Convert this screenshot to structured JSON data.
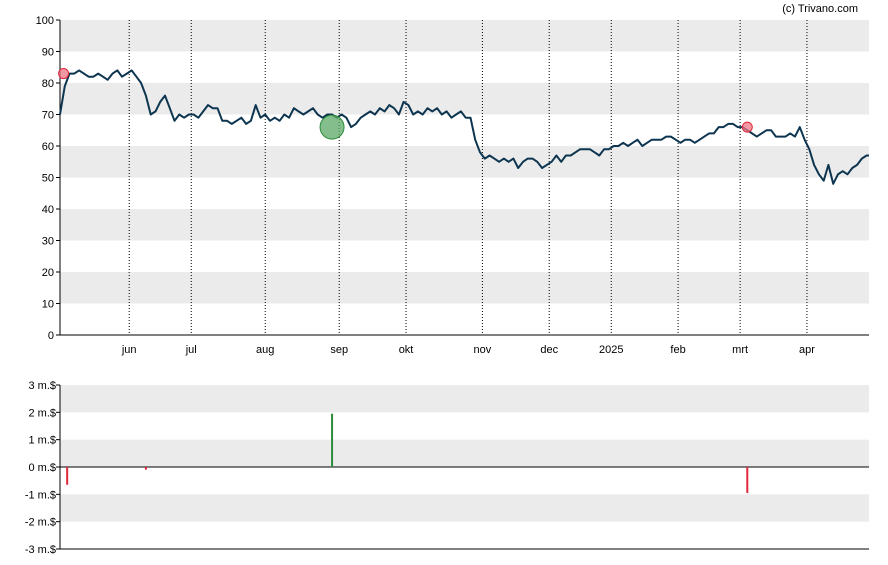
{
  "credit": "(c) Trivano.com",
  "colors": {
    "line": "#0d3550",
    "band": "#ebebeb",
    "buy": "#2e8b3a",
    "sell": "#e0283a",
    "buy_marker": "#5aa865",
    "sell_marker": "#f07585"
  },
  "chart_data": [
    {
      "type": "line",
      "title": "",
      "xlabel": "",
      "ylabel": "",
      "ylim": [
        0,
        100
      ],
      "yticks": [
        "0",
        "10",
        "20",
        "30",
        "40",
        "50",
        "60",
        "70",
        "80",
        "90",
        "100"
      ],
      "xlim": [
        0,
        339
      ],
      "month_labels": [
        "jun",
        "jul",
        "aug",
        "sep",
        "okt",
        "nov",
        "dec",
        "2025",
        "feb",
        "mrt",
        "apr"
      ],
      "month_positions": [
        29,
        55,
        86,
        117,
        145,
        177,
        205,
        231,
        259,
        285,
        313
      ],
      "grid": "vertical dotted lines at month starts, alternating horizontal bands",
      "series": [
        {
          "x": [
            0,
            2,
            4,
            6,
            8,
            10,
            12,
            14,
            16,
            18,
            20,
            22,
            24,
            26,
            28,
            30,
            32,
            34,
            36,
            38,
            40,
            42,
            44,
            46,
            48,
            50,
            52,
            54,
            56,
            58,
            60,
            62,
            64,
            66,
            68,
            70,
            72,
            74,
            76,
            78,
            80,
            82,
            84,
            86,
            88,
            90,
            92,
            94,
            96,
            98,
            100,
            102,
            104,
            106,
            108,
            110,
            112,
            114,
            116,
            118,
            120,
            122,
            124,
            126,
            128,
            130,
            132,
            134,
            136,
            138,
            140,
            142,
            144,
            146,
            148,
            150,
            152,
            154,
            156,
            158,
            160,
            162,
            164,
            166,
            168,
            170,
            172,
            174,
            176,
            178,
            180,
            182,
            184,
            186,
            188,
            190,
            192,
            194,
            196,
            198,
            200,
            202,
            204,
            206,
            208,
            210,
            212,
            214,
            216,
            218,
            220,
            222,
            224,
            226,
            228,
            230,
            232,
            234,
            236,
            238,
            240,
            242,
            244,
            246,
            248,
            250,
            252,
            254,
            256,
            258,
            260,
            262,
            264,
            266,
            268,
            270,
            272,
            274,
            276,
            278,
            280,
            282,
            284,
            286,
            288,
            290,
            292,
            294,
            296,
            298,
            300,
            302,
            304,
            306,
            308,
            310,
            312,
            314,
            316,
            318,
            320,
            322,
            324,
            326,
            328,
            330,
            332,
            334,
            336,
            338,
            339
          ],
          "values": [
            70,
            79,
            83,
            83,
            84,
            83,
            82,
            82,
            83,
            82,
            81,
            83,
            84,
            82,
            83,
            84,
            82,
            80,
            76,
            70,
            71,
            74,
            76,
            72,
            68,
            70,
            69,
            70,
            70,
            69,
            71,
            73,
            72,
            72,
            68,
            68,
            67,
            68,
            69,
            67,
            68,
            73,
            69,
            70,
            68,
            69,
            68,
            70,
            69,
            72,
            71,
            70,
            71,
            72,
            70,
            69,
            70,
            70,
            69,
            70,
            69,
            66,
            67,
            69,
            70,
            71,
            70,
            72,
            71,
            73,
            72,
            70,
            74,
            73,
            70,
            71,
            70,
            72,
            71,
            72,
            70,
            71,
            69,
            70,
            71,
            69,
            69,
            62,
            58,
            56,
            57,
            56,
            55,
            56,
            55,
            56,
            53,
            55,
            56,
            56,
            55,
            53,
            54,
            55,
            57,
            55,
            57,
            57,
            58,
            59,
            59,
            59,
            58,
            57,
            59,
            59,
            60,
            60,
            61,
            60,
            61,
            62,
            60,
            61,
            62,
            62,
            62,
            63,
            63,
            62,
            61,
            62,
            62,
            61,
            62,
            63,
            64,
            64,
            66,
            66,
            67,
            67,
            66,
            66,
            65,
            64,
            63,
            64,
            65,
            65,
            63,
            63,
            63,
            64,
            63,
            66,
            62,
            59,
            54,
            51,
            49,
            54,
            48,
            51,
            52,
            51,
            53,
            54,
            56,
            57,
            57
          ]
        }
      ],
      "markers": [
        {
          "x": 1.5,
          "y": 83,
          "kind": "sell",
          "size": "small"
        },
        {
          "x": 114,
          "y": 66,
          "kind": "buy",
          "size": "large"
        },
        {
          "x": 288,
          "y": 66,
          "kind": "sell",
          "size": "small"
        }
      ]
    },
    {
      "type": "bar",
      "title": "",
      "xlabel": "",
      "ylabel": "",
      "ylim": [
        -3,
        3
      ],
      "yticks": [
        "-3 m.$",
        "-2 m.$",
        "-1 m.$",
        "0 m.$",
        "1 m.$",
        "2 m.$",
        "3 m.$"
      ],
      "xlim": [
        0,
        339
      ],
      "grid": "alternating horizontal bands",
      "bars": [
        {
          "x": 3,
          "value": -0.65,
          "kind": "sell"
        },
        {
          "x": 36,
          "value": -0.1,
          "kind": "sell"
        },
        {
          "x": 114,
          "value": 1.95,
          "kind": "buy"
        },
        {
          "x": 288,
          "value": -0.95,
          "kind": "sell"
        }
      ]
    }
  ]
}
